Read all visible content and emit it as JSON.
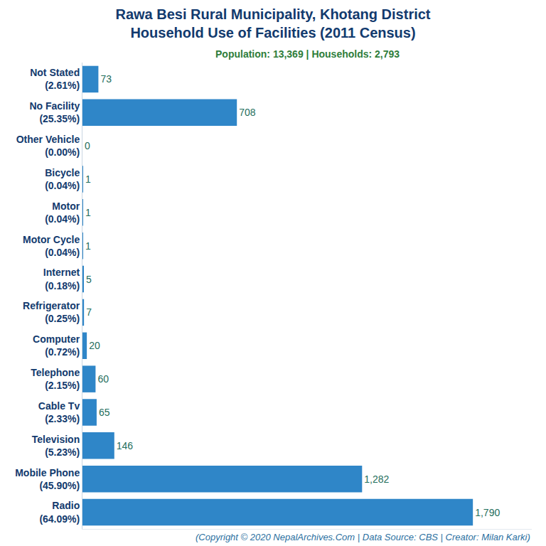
{
  "chart_data": {
    "type": "bar",
    "orientation": "horizontal",
    "title": "Rawa Besi Rural Municipality, Khotang District\nHousehold Use of Facilities (2011 Census)",
    "subtitle": "Population: 13,369 | Households: 2,793",
    "annotations": [
      "(Copyright © 2020 NepalArchives.Com | Data Source: CBS | Creator: Milan Karki)"
    ],
    "categories": [
      "Not Stated\n(2.61%)",
      "No Facility\n(25.35%)",
      "Other Vehicle\n(0.00%)",
      "Bicycle\n(0.04%)",
      "Motor\n(0.04%)",
      "Motor Cycle\n(0.04%)",
      "Internet\n(0.18%)",
      "Refrigerator\n(0.25%)",
      "Computer\n(0.72%)",
      "Telephone\n(2.15%)",
      "Cable Tv\n(2.33%)",
      "Television\n(5.23%)",
      "Mobile Phone\n(45.90%)",
      "Radio\n(64.09%)"
    ],
    "values": [
      73,
      708,
      0,
      1,
      1,
      1,
      5,
      7,
      20,
      60,
      65,
      146,
      1282,
      1790
    ],
    "value_labels": [
      "73",
      "708",
      "0",
      "1",
      "1",
      "1",
      "5",
      "7",
      "20",
      "60",
      "65",
      "146",
      "1,282",
      "1,790"
    ],
    "color": "#2f86c8",
    "xlim": [
      0,
      2060
    ],
    "xticks": [],
    "data_labels": true,
    "tick_labels": "y",
    "grid": false
  }
}
